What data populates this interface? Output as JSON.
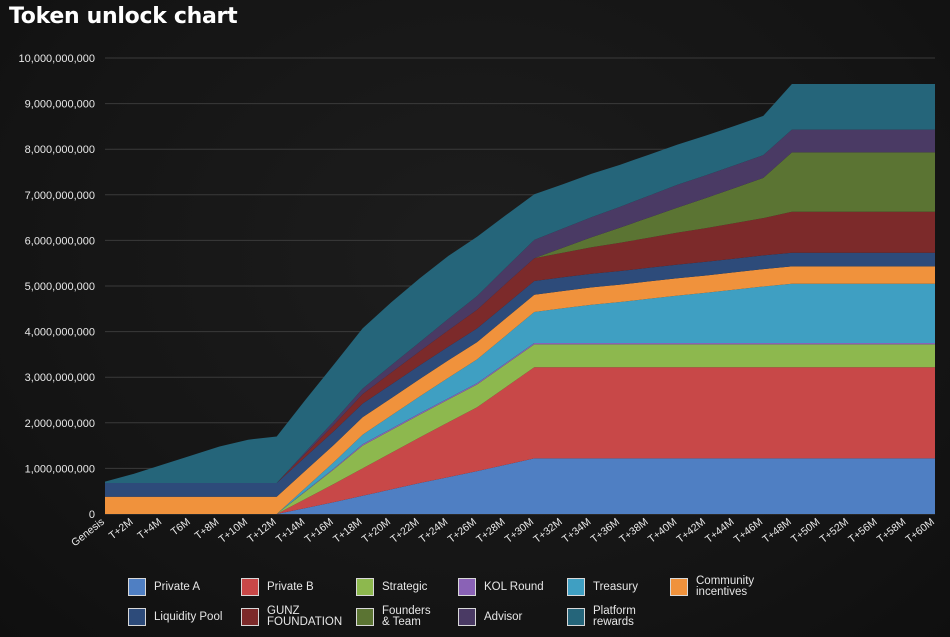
{
  "chart_data": {
    "type": "area",
    "stacked": true,
    "title": "Token unlock chart",
    "xlabel": "",
    "ylabel": "",
    "ylim": [
      0,
      10000000000
    ],
    "yticks": [
      "0",
      "1,000,000,000",
      "2,000,000,000",
      "3,000,000,000",
      "4,000,000,000",
      "5,000,000,000",
      "6,000,000,000",
      "7,000,000,000",
      "8,000,000,000",
      "9,000,000,000",
      "10,000,000,000"
    ],
    "yticks_values": [
      0,
      1000000000,
      2000000000,
      3000000000,
      4000000000,
      5000000000,
      6000000000,
      7000000000,
      8000000000,
      9000000000,
      10000000000
    ],
    "grid": true,
    "legend_position": "bottom",
    "categories": [
      "Genesis",
      "T+2M",
      "T+4M",
      "T6M",
      "T+8M",
      "T+10M",
      "T+12M",
      "T+14M",
      "T+16M",
      "T+18M",
      "T+20M",
      "T+22M",
      "T+24M",
      "T+26M",
      "T+28M",
      "T+30M",
      "T+32M",
      "T+34M",
      "T+36M",
      "T+38M",
      "T+40M",
      "T+42M",
      "T+44M",
      "T+46M",
      "T+48M",
      "T+50M",
      "T+52M",
      "T+56M",
      "T+58M",
      "T+60M"
    ],
    "series": [
      {
        "name": "Private A",
        "color": "#4f7fc3",
        "values": [
          0,
          0,
          0,
          0,
          0,
          0,
          0,
          130000000,
          260000000,
          400000000,
          540000000,
          680000000,
          810000000,
          940000000,
          1080000000,
          1220000000,
          1220000000,
          1220000000,
          1220000000,
          1220000000,
          1220000000,
          1220000000,
          1220000000,
          1220000000,
          1220000000,
          1220000000,
          1220000000,
          1220000000,
          1220000000,
          1220000000
        ]
      },
      {
        "name": "Private B",
        "color": "#c84848",
        "values": [
          0,
          0,
          0,
          0,
          0,
          0,
          0,
          200000000,
          400000000,
          600000000,
          800000000,
          1000000000,
          1200000000,
          1400000000,
          1700000000,
          2000000000,
          2000000000,
          2000000000,
          2000000000,
          2000000000,
          2000000000,
          2000000000,
          2000000000,
          2000000000,
          2000000000,
          2000000000,
          2000000000,
          2000000000,
          2000000000,
          2000000000
        ]
      },
      {
        "name": "Strategic",
        "color": "#8db84e",
        "values": [
          0,
          0,
          0,
          0,
          0,
          0,
          0,
          160000000,
          320000000,
          500000000,
          500000000,
          500000000,
          500000000,
          500000000,
          500000000,
          500000000,
          500000000,
          500000000,
          500000000,
          500000000,
          500000000,
          500000000,
          500000000,
          500000000,
          500000000,
          500000000,
          500000000,
          500000000,
          500000000,
          500000000
        ]
      },
      {
        "name": "KOL Round",
        "color": "#8a62b6",
        "values": [
          0,
          0,
          0,
          0,
          0,
          0,
          0,
          10000000,
          20000000,
          30000000,
          30000000,
          30000000,
          30000000,
          30000000,
          30000000,
          30000000,
          30000000,
          30000000,
          30000000,
          30000000,
          30000000,
          30000000,
          30000000,
          30000000,
          30000000,
          30000000,
          30000000,
          30000000,
          30000000,
          30000000
        ]
      },
      {
        "name": "Treasury",
        "color": "#3f9fc2",
        "values": [
          0,
          0,
          0,
          0,
          0,
          0,
          0,
          70000000,
          140000000,
          210000000,
          290000000,
          370000000,
          450000000,
          520000000,
          600000000,
          680000000,
          760000000,
          840000000,
          900000000,
          970000000,
          1040000000,
          1100000000,
          1170000000,
          1240000000,
          1300000000,
          1300000000,
          1300000000,
          1300000000,
          1300000000,
          1300000000
        ]
      },
      {
        "name": "Community incentives",
        "color": "#f0923c",
        "values": [
          380000000,
          380000000,
          380000000,
          380000000,
          380000000,
          380000000,
          380000000,
          380000000,
          380000000,
          380000000,
          380000000,
          380000000,
          380000000,
          380000000,
          380000000,
          380000000,
          380000000,
          380000000,
          380000000,
          380000000,
          380000000,
          380000000,
          380000000,
          380000000,
          380000000,
          380000000,
          380000000,
          380000000,
          380000000,
          380000000
        ]
      },
      {
        "name": "Liquidity Pool",
        "color": "#2d4b7a",
        "values": [
          300000000,
          300000000,
          300000000,
          300000000,
          300000000,
          300000000,
          300000000,
          300000000,
          300000000,
          300000000,
          300000000,
          300000000,
          300000000,
          300000000,
          300000000,
          300000000,
          300000000,
          300000000,
          300000000,
          300000000,
          300000000,
          300000000,
          300000000,
          300000000,
          300000000,
          300000000,
          300000000,
          300000000,
          300000000,
          300000000
        ]
      },
      {
        "name": "GUNZ FOUNDATION",
        "color": "#7c2a2a",
        "values": [
          0,
          0,
          0,
          0,
          0,
          0,
          0,
          70000000,
          140000000,
          210000000,
          260000000,
          310000000,
          360000000,
          410000000,
          460000000,
          500000000,
          540000000,
          580000000,
          620000000,
          660000000,
          700000000,
          740000000,
          780000000,
          820000000,
          900000000,
          900000000,
          900000000,
          900000000,
          900000000,
          900000000
        ]
      },
      {
        "name": "Founders & Team",
        "color": "#5b7433",
        "values": [
          0,
          0,
          0,
          0,
          0,
          0,
          0,
          0,
          0,
          0,
          0,
          0,
          0,
          0,
          0,
          0,
          110000000,
          220000000,
          330000000,
          440000000,
          550000000,
          660000000,
          770000000,
          880000000,
          1300000000,
          1300000000,
          1300000000,
          1300000000,
          1300000000,
          1300000000
        ]
      },
      {
        "name": "Advisor",
        "color": "#4a3a64",
        "values": [
          0,
          0,
          0,
          0,
          0,
          0,
          0,
          40000000,
          80000000,
          120000000,
          160000000,
          200000000,
          250000000,
          300000000,
          350000000,
          400000000,
          420000000,
          440000000,
          460000000,
          480000000,
          500000000,
          500000000,
          500000000,
          500000000,
          500000000,
          500000000,
          500000000,
          500000000,
          500000000,
          500000000
        ]
      },
      {
        "name": "Platform rewards",
        "color": "#25657a",
        "values": [
          30000000,
          200000000,
          400000000,
          600000000,
          800000000,
          950000000,
          1020000000,
          1140000000,
          1240000000,
          1320000000,
          1380000000,
          1400000000,
          1380000000,
          1300000000,
          1150000000,
          1000000000,
          970000000,
          950000000,
          920000000,
          900000000,
          880000000,
          870000000,
          860000000,
          860000000,
          1000000000,
          1000000000,
          1000000000,
          1000000000,
          1000000000,
          1000000000
        ]
      }
    ]
  },
  "legend": {
    "items": [
      {
        "label": "Private A",
        "color": "#4f7fc3"
      },
      {
        "label": "Private B",
        "color": "#c84848"
      },
      {
        "label": "Strategic",
        "color": "#8db84e"
      },
      {
        "label": "KOL Round",
        "color": "#8a62b6"
      },
      {
        "label": "Treasury",
        "color": "#3f9fc2"
      },
      {
        "label": "Community\nincentives",
        "color": "#f0923c"
      },
      {
        "label": "Liquidity Pool",
        "color": "#2d4b7a"
      },
      {
        "label": "GUNZ\nFOUNDATION",
        "color": "#7c2a2a"
      },
      {
        "label": "Founders\n& Team",
        "color": "#5b7433"
      },
      {
        "label": "Advisor",
        "color": "#4a3a64"
      },
      {
        "label": "Platform\nrewards",
        "color": "#25657a"
      }
    ]
  }
}
